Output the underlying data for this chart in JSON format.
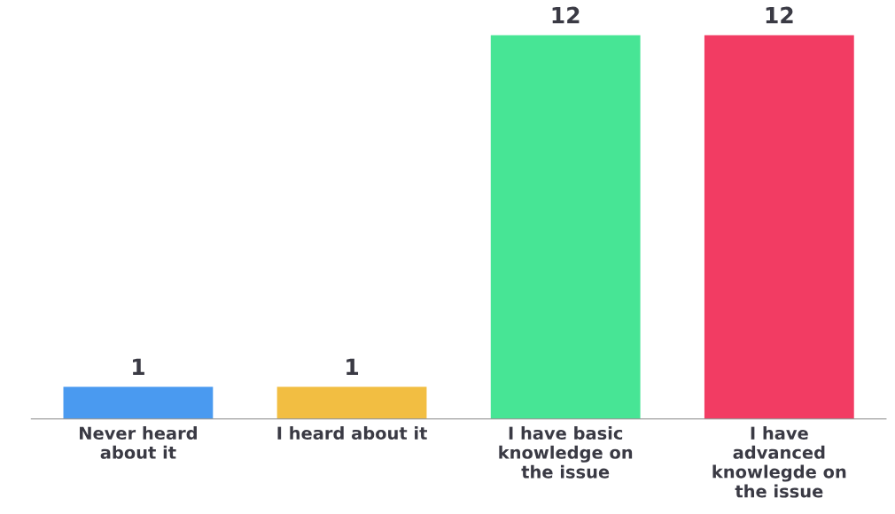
{
  "chart_data": {
    "type": "bar",
    "categories": [
      "Never heard\nabout it",
      "I heard about it",
      "I have basic\nknowledge on\nthe issue",
      "I have\nadvanced\nknowlegde on\nthe issue"
    ],
    "values": [
      1,
      1,
      12,
      12
    ],
    "colors": [
      "#4a9af0",
      "#f2be42",
      "#47e595",
      "#f23c63"
    ],
    "data_labels": true,
    "grid": false,
    "legend": false
  }
}
